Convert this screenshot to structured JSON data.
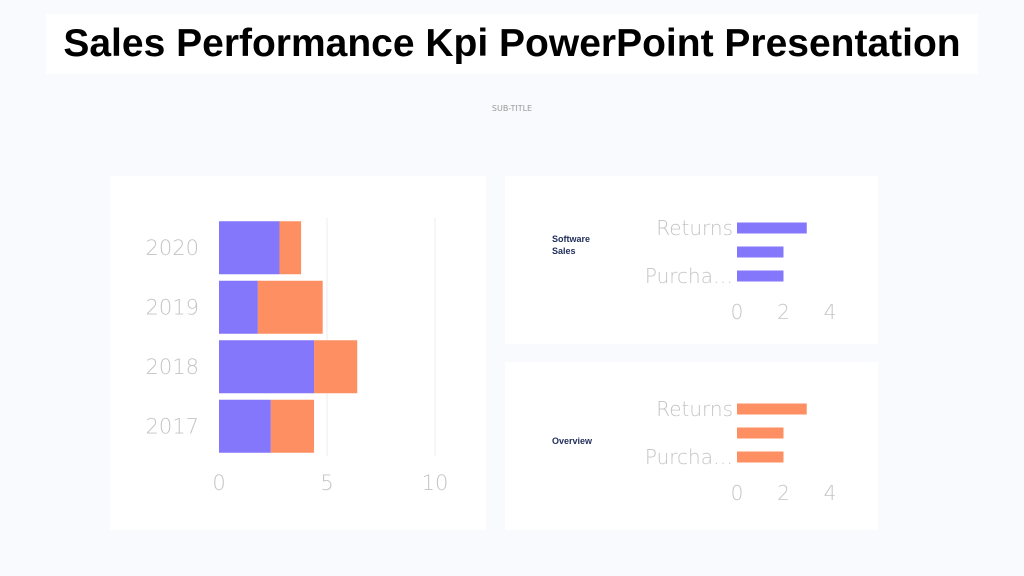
{
  "header": {
    "title": "Sales Performance Kpi PowerPoint Presentation",
    "subtitle": "SUB-TITLE"
  },
  "chart_data": [
    {
      "type": "bar",
      "orientation": "horizontal",
      "stacked": true,
      "categories": [
        "2020",
        "2019",
        "2018",
        "2017"
      ],
      "series": [
        {
          "values": [
            2.8,
            1.8,
            4.4,
            2.4
          ],
          "color": "#8477fb"
        },
        {
          "values": [
            1.0,
            3.0,
            2.0,
            2.0
          ],
          "color": "#fe8f63"
        }
      ],
      "xlim": [
        0,
        10
      ],
      "xticks": [
        "0",
        "5",
        "10"
      ],
      "grid": true
    },
    {
      "type": "bar",
      "orientation": "horizontal",
      "title": "Software Sales",
      "categories": [
        "Returns",
        "",
        "Purcha…"
      ],
      "series": [
        {
          "values": [
            3,
            2,
            2
          ],
          "color": "#8477fb"
        }
      ],
      "xlim": [
        0,
        4
      ],
      "xticks": [
        "0",
        "2",
        "4"
      ]
    },
    {
      "type": "bar",
      "orientation": "horizontal",
      "title": "Overview",
      "categories": [
        "Returns",
        "",
        "Purcha…"
      ],
      "series": [
        {
          "values": [
            3,
            2,
            2
          ],
          "color": "#fe8f63"
        }
      ],
      "xlim": [
        0,
        4
      ],
      "xticks": [
        "0",
        "2",
        "4"
      ]
    }
  ]
}
